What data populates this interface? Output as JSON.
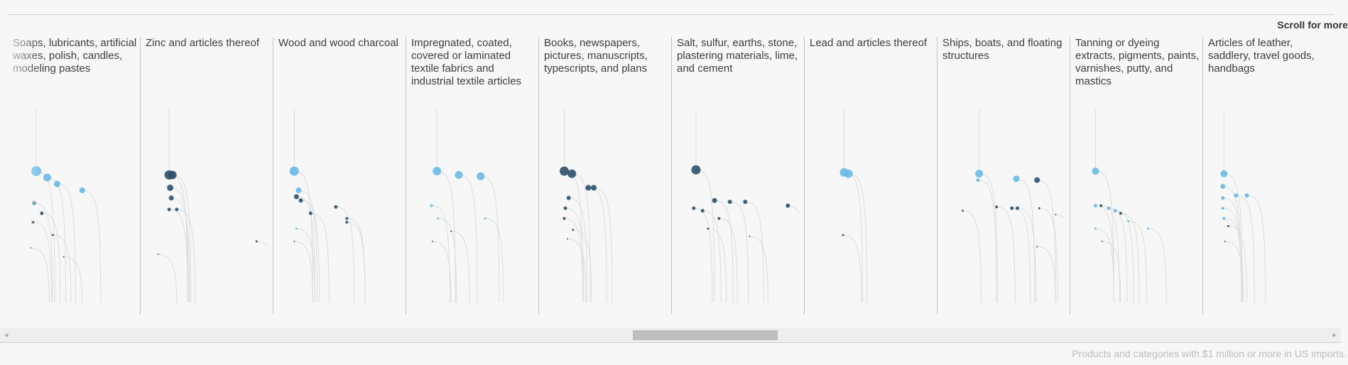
{
  "header": {
    "scroll_hint": "Scroll for more"
  },
  "footnote": "Products and categories with $1 million or more in US imports.",
  "scrollbar": {
    "left_arrow": "◂",
    "right_arrow": "▸",
    "position": 0.5
  },
  "colors": {
    "light": "#69b9e6",
    "medium": "#5b8fa9",
    "dark": "#2b5068",
    "line": "#dcdcdc",
    "separator": "#c4c4c4"
  },
  "chart_data": [
    {
      "type": "scatter",
      "category": "Soaps, lubricants, artificial waxes, polish, candles, modeling pastes",
      "points": [
        {
          "x": 0.15,
          "y": 0.95,
          "size": 14,
          "shade": "light"
        },
        {
          "x": 0.25,
          "y": 0.9,
          "size": 11,
          "shade": "light"
        },
        {
          "x": 0.34,
          "y": 0.85,
          "size": 9,
          "shade": "light"
        },
        {
          "x": 0.57,
          "y": 0.8,
          "size": 8,
          "shade": "light"
        },
        {
          "x": 0.13,
          "y": 0.7,
          "size": 6,
          "shade": "medium"
        },
        {
          "x": 0.2,
          "y": 0.62,
          "size": 5,
          "shade": "dark"
        },
        {
          "x": 0.12,
          "y": 0.55,
          "size": 4,
          "shade": "dark"
        },
        {
          "x": 0.3,
          "y": 0.45,
          "size": 3,
          "shade": "dark"
        },
        {
          "x": 0.1,
          "y": 0.35,
          "size": 2,
          "shade": "dark"
        },
        {
          "x": 0.4,
          "y": 0.28,
          "size": 2,
          "shade": "dark"
        }
      ]
    },
    {
      "type": "scatter",
      "category": "Zinc and articles thereof",
      "points": [
        {
          "x": 0.15,
          "y": 0.92,
          "size": 13,
          "shade": "dark"
        },
        {
          "x": 0.18,
          "y": 0.92,
          "size": 12,
          "shade": "dark"
        },
        {
          "x": 0.16,
          "y": 0.82,
          "size": 9,
          "shade": "dark"
        },
        {
          "x": 0.17,
          "y": 0.74,
          "size": 7,
          "shade": "dark"
        },
        {
          "x": 0.15,
          "y": 0.65,
          "size": 5,
          "shade": "dark"
        },
        {
          "x": 0.22,
          "y": 0.65,
          "size": 5,
          "shade": "dark"
        },
        {
          "x": 0.95,
          "y": 0.4,
          "size": 3,
          "shade": "dark"
        },
        {
          "x": 0.05,
          "y": 0.3,
          "size": 2,
          "shade": "dark"
        }
      ]
    },
    {
      "type": "scatter",
      "category": "Wood and wood charcoal",
      "points": [
        {
          "x": 0.08,
          "y": 0.95,
          "size": 13,
          "shade": "light"
        },
        {
          "x": 0.12,
          "y": 0.8,
          "size": 8,
          "shade": "light"
        },
        {
          "x": 0.1,
          "y": 0.75,
          "size": 7,
          "shade": "dark"
        },
        {
          "x": 0.14,
          "y": 0.72,
          "size": 6,
          "shade": "dark"
        },
        {
          "x": 0.23,
          "y": 0.62,
          "size": 5,
          "shade": "dark"
        },
        {
          "x": 0.46,
          "y": 0.67,
          "size": 5,
          "shade": "dark"
        },
        {
          "x": 0.56,
          "y": 0.58,
          "size": 4,
          "shade": "dark"
        },
        {
          "x": 0.56,
          "y": 0.55,
          "size": 4,
          "shade": "dark"
        },
        {
          "x": 0.1,
          "y": 0.5,
          "size": 3,
          "shade": "light"
        },
        {
          "x": 0.08,
          "y": 0.4,
          "size": 2,
          "shade": "dark"
        }
      ]
    },
    {
      "type": "scatter",
      "category": "Impregnated, coated, covered or laminated textile fabrics and industrial textile articles",
      "points": [
        {
          "x": 0.17,
          "y": 0.95,
          "size": 12,
          "shade": "light"
        },
        {
          "x": 0.37,
          "y": 0.92,
          "size": 11,
          "shade": "light"
        },
        {
          "x": 0.57,
          "y": 0.91,
          "size": 11,
          "shade": "light"
        },
        {
          "x": 0.12,
          "y": 0.68,
          "size": 4,
          "shade": "light"
        },
        {
          "x": 0.18,
          "y": 0.58,
          "size": 3,
          "shade": "light"
        },
        {
          "x": 0.61,
          "y": 0.58,
          "size": 3,
          "shade": "light"
        },
        {
          "x": 0.3,
          "y": 0.48,
          "size": 2,
          "shade": "dark"
        },
        {
          "x": 0.13,
          "y": 0.4,
          "size": 2,
          "shade": "dark"
        }
      ]
    },
    {
      "type": "scatter",
      "category": "Books, newspapers, pictures, manuscripts, typescripts, and plans",
      "points": [
        {
          "x": 0.12,
          "y": 0.95,
          "size": 13,
          "shade": "dark"
        },
        {
          "x": 0.19,
          "y": 0.93,
          "size": 12,
          "shade": "dark"
        },
        {
          "x": 0.34,
          "y": 0.82,
          "size": 8,
          "shade": "dark"
        },
        {
          "x": 0.39,
          "y": 0.82,
          "size": 8,
          "shade": "dark"
        },
        {
          "x": 0.16,
          "y": 0.74,
          "size": 6,
          "shade": "dark"
        },
        {
          "x": 0.13,
          "y": 0.66,
          "size": 5,
          "shade": "dark"
        },
        {
          "x": 0.12,
          "y": 0.58,
          "size": 4,
          "shade": "dark"
        },
        {
          "x": 0.2,
          "y": 0.49,
          "size": 3,
          "shade": "dark"
        },
        {
          "x": 0.15,
          "y": 0.42,
          "size": 2,
          "shade": "dark"
        }
      ]
    },
    {
      "type": "scatter",
      "category": "Salt, sulfur, earths, stone, plastering materials, lime, and cement",
      "points": [
        {
          "x": 0.11,
          "y": 0.96,
          "size": 13,
          "shade": "dark"
        },
        {
          "x": 0.28,
          "y": 0.72,
          "size": 7,
          "shade": "dark"
        },
        {
          "x": 0.42,
          "y": 0.71,
          "size": 6,
          "shade": "dark"
        },
        {
          "x": 0.56,
          "y": 0.71,
          "size": 6,
          "shade": "dark"
        },
        {
          "x": 0.95,
          "y": 0.68,
          "size": 6,
          "shade": "dark"
        },
        {
          "x": 0.09,
          "y": 0.66,
          "size": 5,
          "shade": "dark"
        },
        {
          "x": 0.17,
          "y": 0.64,
          "size": 5,
          "shade": "dark"
        },
        {
          "x": 0.32,
          "y": 0.58,
          "size": 4,
          "shade": "dark"
        },
        {
          "x": 0.22,
          "y": 0.5,
          "size": 3,
          "shade": "dark"
        },
        {
          "x": 0.6,
          "y": 0.44,
          "size": 2,
          "shade": "dark"
        }
      ]
    },
    {
      "type": "scatter",
      "category": "Lead and articles thereof",
      "points": [
        {
          "x": 0.25,
          "y": 0.94,
          "size": 12,
          "shade": "light"
        },
        {
          "x": 0.29,
          "y": 0.93,
          "size": 12,
          "shade": "light"
        },
        {
          "x": 0.24,
          "y": 0.45,
          "size": 3,
          "shade": "dark"
        }
      ]
    },
    {
      "type": "scatter",
      "category": "Ships, boats, and floating structures",
      "points": [
        {
          "x": 0.27,
          "y": 0.93,
          "size": 11,
          "shade": "light"
        },
        {
          "x": 0.61,
          "y": 0.89,
          "size": 9,
          "shade": "light"
        },
        {
          "x": 0.8,
          "y": 0.88,
          "size": 8,
          "shade": "dark"
        },
        {
          "x": 0.26,
          "y": 0.88,
          "size": 5,
          "shade": "light"
        },
        {
          "x": 0.43,
          "y": 0.67,
          "size": 4,
          "shade": "dark"
        },
        {
          "x": 0.57,
          "y": 0.66,
          "size": 5,
          "shade": "dark"
        },
        {
          "x": 0.62,
          "y": 0.66,
          "size": 5,
          "shade": "dark"
        },
        {
          "x": 0.12,
          "y": 0.64,
          "size": 3,
          "shade": "dark"
        },
        {
          "x": 0.82,
          "y": 0.66,
          "size": 3,
          "shade": "dark"
        },
        {
          "x": 0.97,
          "y": 0.61,
          "size": 2,
          "shade": "dark"
        },
        {
          "x": 0.8,
          "y": 0.36,
          "size": 2,
          "shade": "dark"
        }
      ]
    },
    {
      "type": "scatter",
      "category": "Tanning or dyeing extracts, pigments, paints, varnishes, putty, and mastics",
      "points": [
        {
          "x": 0.12,
          "y": 0.95,
          "size": 10,
          "shade": "light"
        },
        {
          "x": 0.12,
          "y": 0.68,
          "size": 5,
          "shade": "light"
        },
        {
          "x": 0.17,
          "y": 0.68,
          "size": 4,
          "shade": "dark"
        },
        {
          "x": 0.24,
          "y": 0.66,
          "size": 5,
          "shade": "light"
        },
        {
          "x": 0.3,
          "y": 0.64,
          "size": 5,
          "shade": "light"
        },
        {
          "x": 0.35,
          "y": 0.62,
          "size": 4,
          "shade": "dark"
        },
        {
          "x": 0.42,
          "y": 0.56,
          "size": 3,
          "shade": "light"
        },
        {
          "x": 0.6,
          "y": 0.5,
          "size": 3,
          "shade": "light"
        },
        {
          "x": 0.12,
          "y": 0.5,
          "size": 3,
          "shade": "light"
        },
        {
          "x": 0.18,
          "y": 0.4,
          "size": 2,
          "shade": "dark"
        }
      ]
    },
    {
      "type": "scatter",
      "category": "Articles of leather, saddlery, travel goods, handbags",
      "points": [
        {
          "x": 0.08,
          "y": 0.93,
          "size": 10,
          "shade": "light"
        },
        {
          "x": 0.07,
          "y": 0.83,
          "size": 7,
          "shade": "light"
        },
        {
          "x": 0.19,
          "y": 0.76,
          "size": 6,
          "shade": "light"
        },
        {
          "x": 0.29,
          "y": 0.76,
          "size": 6,
          "shade": "light"
        },
        {
          "x": 0.07,
          "y": 0.74,
          "size": 5,
          "shade": "light"
        },
        {
          "x": 0.07,
          "y": 0.66,
          "size": 4,
          "shade": "light"
        },
        {
          "x": 0.08,
          "y": 0.58,
          "size": 4,
          "shade": "light"
        },
        {
          "x": 0.12,
          "y": 0.52,
          "size": 3,
          "shade": "dark"
        },
        {
          "x": 0.09,
          "y": 0.4,
          "size": 2,
          "shade": "dark"
        }
      ]
    }
  ]
}
